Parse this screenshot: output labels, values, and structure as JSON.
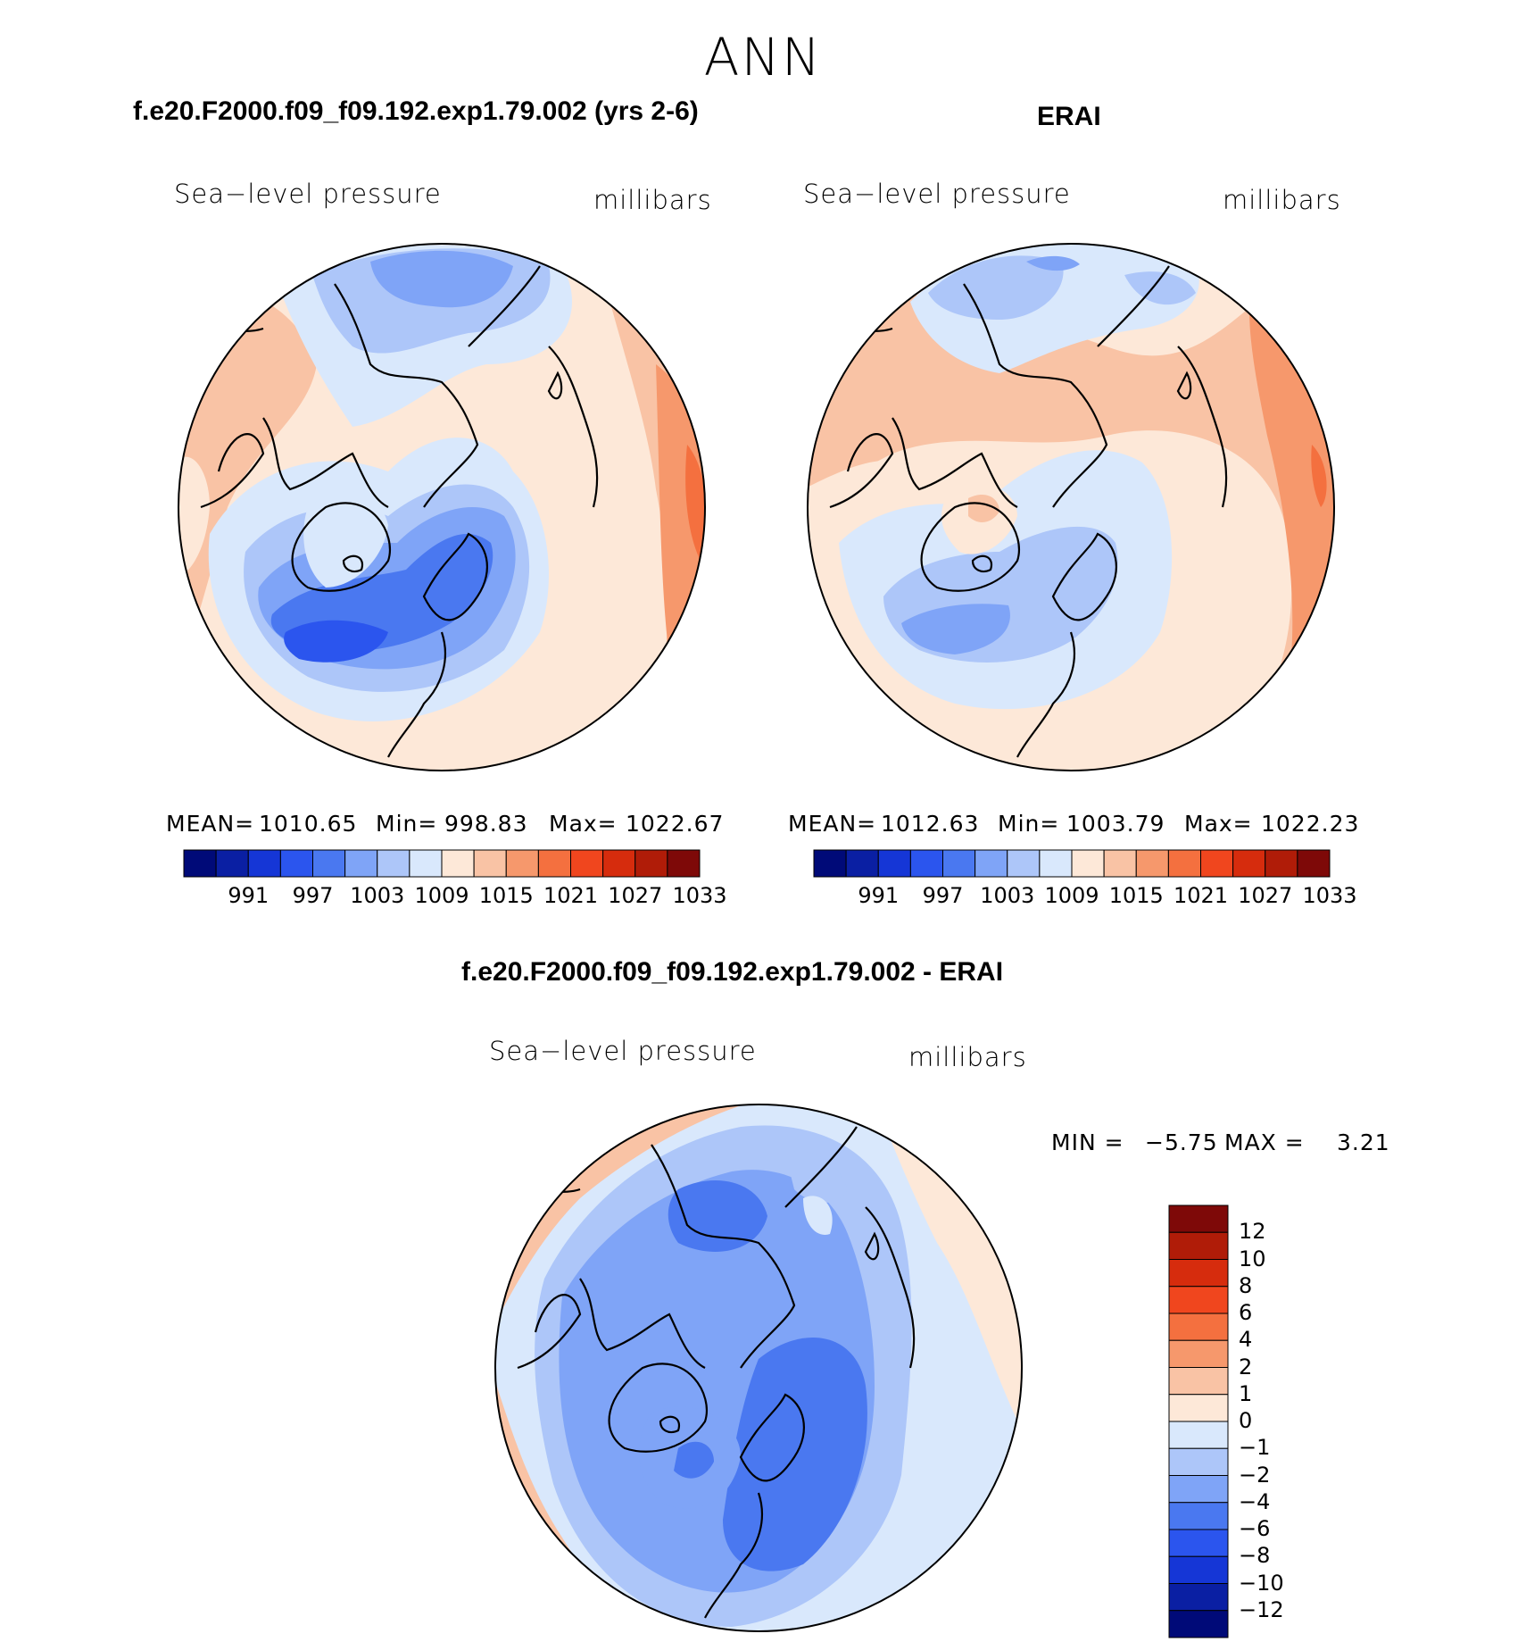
{
  "season": "ANN",
  "top_left": {
    "title": "f.e20.F2000.f09_f09.192.exp1.79.002 (yrs 2-6)",
    "variable": "Sea−level pressure",
    "units": "millibars",
    "stats": {
      "mean_label": "MEAN=",
      "mean": "1010.65",
      "min_label": "Min=",
      "min": "998.83",
      "max_label": "Max=",
      "max": "1022.67"
    }
  },
  "top_right": {
    "title": "ERAI",
    "variable": "Sea−level pressure",
    "units": "millibars",
    "stats": {
      "mean_label": "MEAN=",
      "mean": "1012.63",
      "min_label": "Min=",
      "min": "1003.79",
      "max_label": "Max=",
      "max": "1022.23"
    }
  },
  "bottom": {
    "title": "f.e20.F2000.f09_f09.192.exp1.79.002 - ERAI",
    "variable": "Sea−level pressure",
    "units": "millibars",
    "min_label": "MIN =",
    "min": "−5.75",
    "max_label": "MAX =",
    "max": "3.21"
  },
  "colors": {
    "abs_scale": [
      "#000a78",
      "#0a1fa3",
      "#1536d6",
      "#2b55ee",
      "#4a78f0",
      "#7fa4f7",
      "#adc6f9",
      "#d9e8fc",
      "#fde8d8",
      "#f9c3a5",
      "#f6986c",
      "#f4703f",
      "#f0461e",
      "#d62c0d",
      "#b01c08",
      "#7e0908"
    ],
    "diff_scale": [
      "#000a78",
      "#0a1fa3",
      "#1536d6",
      "#2b55ee",
      "#4a78f0",
      "#7fa4f7",
      "#adc6f9",
      "#d9e8fc",
      "#fde8d8",
      "#f9c3a5",
      "#f6986c",
      "#f4703f",
      "#f0461e",
      "#d62c0d",
      "#b01c08",
      "#7e0908"
    ]
  },
  "chart_data": [
    {
      "type": "heatmap",
      "panel": "model",
      "projection": "north polar stereographic",
      "title": "f.e20.F2000.f09_f09.192.exp1.79.002 (yrs 2-6)",
      "variable": "Sea-level pressure",
      "units": "millibars",
      "levels": [
        "991",
        "997",
        "1003",
        "1009",
        "1015",
        "1021",
        "1027",
        "1033"
      ],
      "mean": 1010.65,
      "min": 998.83,
      "max": 1022.67
    },
    {
      "type": "heatmap",
      "panel": "obs",
      "projection": "north polar stereographic",
      "title": "ERAI",
      "variable": "Sea-level pressure",
      "units": "millibars",
      "levels": [
        "991",
        "997",
        "1003",
        "1009",
        "1015",
        "1021",
        "1027",
        "1033"
      ],
      "mean": 1012.63,
      "min": 1003.79,
      "max": 1022.23
    },
    {
      "type": "heatmap",
      "panel": "difference",
      "projection": "north polar stereographic",
      "title": "f.e20.F2000.f09_f09.192.exp1.79.002 - ERAI",
      "variable": "Sea-level pressure",
      "units": "millibars",
      "levels": [
        "12",
        "10",
        "8",
        "6",
        "4",
        "2",
        "1",
        "0",
        "−1",
        "−2",
        "−4",
        "−6",
        "−8",
        "−10",
        "−12"
      ],
      "min": -5.75,
      "max": 3.21
    }
  ]
}
